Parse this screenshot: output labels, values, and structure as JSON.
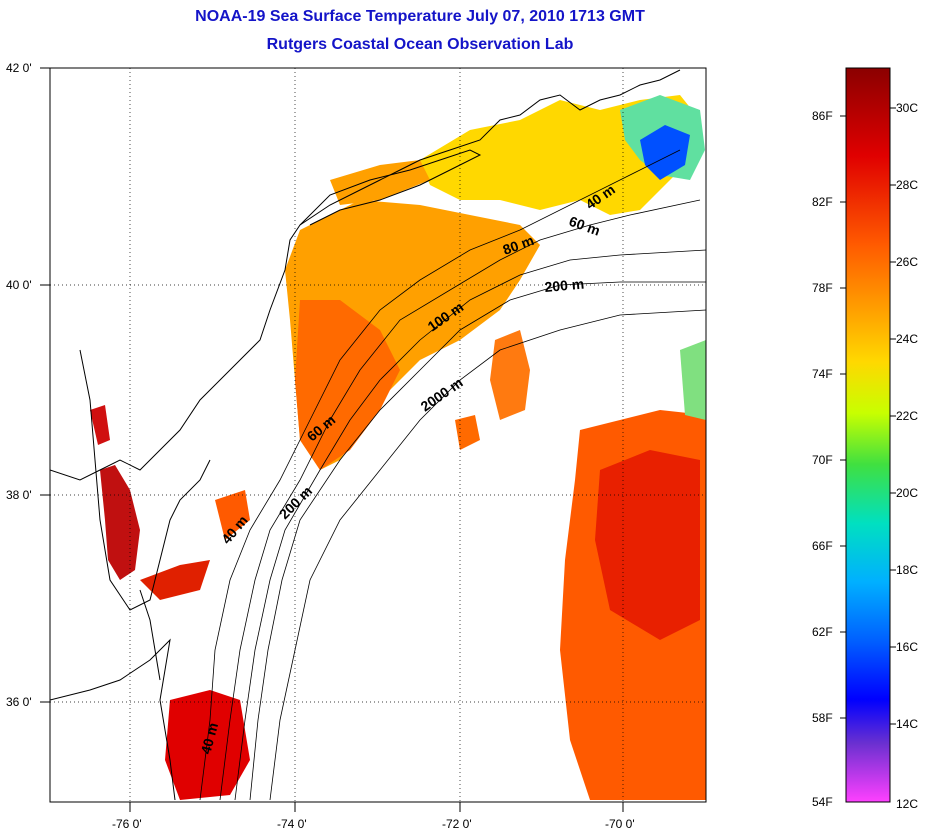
{
  "title": {
    "line1": "NOAA-19 Sea Surface Temperature July 07, 2010 1713 GMT",
    "line2": "Rutgers Coastal Ocean Observation Lab"
  },
  "axes": {
    "y_labels": [
      "42 0'",
      "40 0'",
      "38 0'",
      "36 0'"
    ],
    "x_labels": [
      "-76 0'",
      "-74 0'",
      "-72 0'",
      "-70 0'"
    ]
  },
  "depth_labels": [
    "40 m",
    "60 m",
    "80 m",
    "200 m",
    "100 m",
    "2000 m",
    "60 m",
    "40 m",
    "200 m",
    "40 m"
  ],
  "colorbar": {
    "fahrenheit": [
      "86F",
      "82F",
      "78F",
      "74F",
      "70F",
      "66F",
      "62F",
      "58F",
      "54F"
    ],
    "celsius": [
      "30C",
      "28C",
      "26C",
      "24C",
      "22C",
      "20C",
      "18C",
      "16C",
      "14C",
      "12C"
    ],
    "colors": [
      "#8b0000",
      "#e00000",
      "#ff5a00",
      "#ffa000",
      "#ffd800",
      "#c8ff00",
      "#40e040",
      "#00e0c0",
      "#00b0ff",
      "#0060ff",
      "#0000ff",
      "#6a30d0",
      "#ff40ff"
    ]
  }
}
